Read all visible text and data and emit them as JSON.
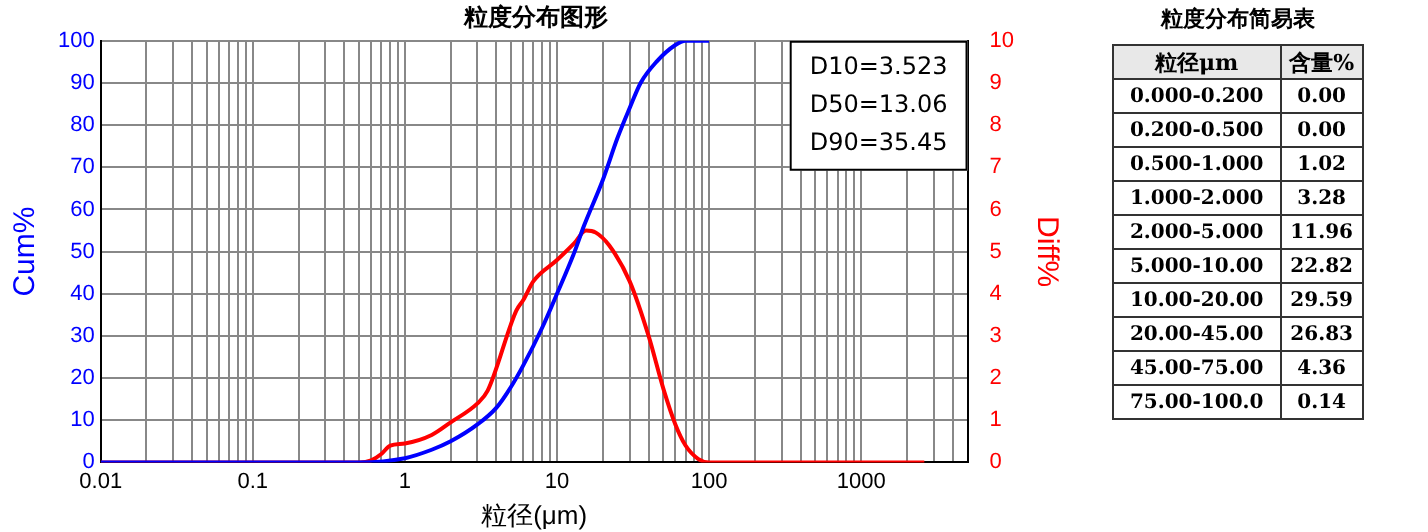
{
  "chart_data": [
    {
      "type": "line",
      "title": "粒度分布图形",
      "xlabel": "粒径(μm)",
      "ylabel": "Cum%",
      "y2label": "Diff%",
      "log": "x",
      "grid": true,
      "xlim": [
        0.01,
        5000
      ],
      "xticks": [
        0.01,
        {
          "value": 0.02,
          "label": null
        },
        {
          "value": 0.03,
          "label": null
        },
        {
          "value": 0.04,
          "label": null
        },
        {
          "value": 0.05,
          "label": null
        },
        {
          "value": 0.06,
          "label": null
        },
        {
          "value": 0.07,
          "label": null
        },
        {
          "value": 0.08,
          "label": null
        },
        {
          "value": 0.09,
          "label": null
        },
        0.1,
        {
          "value": 0.2,
          "label": null
        },
        {
          "value": 0.3,
          "label": null
        },
        {
          "value": 0.4,
          "label": null
        },
        {
          "value": 0.5,
          "label": null
        },
        {
          "value": 0.6,
          "label": null
        },
        {
          "value": 0.7,
          "label": null
        },
        {
          "value": 0.8,
          "label": null
        },
        {
          "value": 0.9,
          "label": null
        },
        1,
        {
          "value": 2,
          "label": null
        },
        {
          "value": 3,
          "label": null
        },
        {
          "value": 4,
          "label": null
        },
        {
          "value": 5,
          "label": null
        },
        {
          "value": 6,
          "label": null
        },
        {
          "value": 7,
          "label": null
        },
        {
          "value": 8,
          "label": null
        },
        {
          "value": 9,
          "label": null
        },
        10,
        {
          "value": 20,
          "label": null
        },
        {
          "value": 30,
          "label": null
        },
        {
          "value": 40,
          "label": null
        },
        {
          "value": 50,
          "label": null
        },
        {
          "value": 60,
          "label": null
        },
        {
          "value": 70,
          "label": null
        },
        {
          "value": 80,
          "label": null
        },
        {
          "value": 90,
          "label": null
        },
        100,
        {
          "value": 200,
          "label": null
        },
        {
          "value": 300,
          "label": null
        },
        {
          "value": 400,
          "label": null
        },
        {
          "value": 500,
          "label": null
        },
        {
          "value": 600,
          "label": null
        },
        {
          "value": 700,
          "label": null
        },
        {
          "value": 800,
          "label": null
        },
        {
          "value": 900,
          "label": null
        },
        1000,
        {
          "value": 2000,
          "label": null
        },
        {
          "value": 3000,
          "label": null
        },
        {
          "value": 4000,
          "label": null
        },
        {
          "value": 5000,
          "label": null
        }
      ],
      "ylim": [
        0,
        100
      ],
      "yticks": [
        0,
        10,
        20,
        30,
        40,
        50,
        60,
        70,
        80,
        90,
        100
      ],
      "y2lim": [
        0,
        10
      ],
      "y2ticks": [
        0,
        1,
        2,
        3,
        4,
        5,
        6,
        7,
        8,
        9,
        10
      ],
      "annotations": [
        "D10=3.523",
        "D50=13.06",
        "D90=35.45"
      ],
      "series": [
        {
          "color": "#0000ff",
          "x": [
            0.01,
            0.5,
            1,
            1.5,
            2,
            3,
            4,
            5,
            6,
            8,
            10,
            13.06,
            15,
            20,
            25,
            30,
            35.45,
            45,
            60,
            70,
            100
          ],
          "values": [
            0,
            0,
            1,
            3,
            5,
            9,
            13,
            18,
            23,
            32,
            40,
            50,
            56,
            67,
            77,
            84,
            90,
            95,
            99,
            100,
            100
          ]
        },
        {
          "color": "#ff0000",
          "axis": "y2",
          "x": [
            0.01,
            0.5,
            0.6,
            0.7,
            0.8,
            1,
            1.5,
            2,
            3,
            3.5,
            5.4,
            6,
            7,
            10,
            13,
            15.5,
            18,
            22,
            30,
            40,
            50,
            60,
            70,
            85,
            100,
            1000,
            2600
          ],
          "values": [
            0,
            0,
            0.05,
            0.2,
            0.4,
            0.45,
            0.65,
            0.95,
            1.4,
            1.7,
            3.6,
            3.85,
            4.3,
            4.8,
            5.2,
            5.5,
            5.45,
            5.15,
            4.3,
            3,
            1.75,
            0.9,
            0.4,
            0.08,
            0,
            0,
            0
          ]
        }
      ]
    },
    {
      "type": "other",
      "title": "粒度分布简易表",
      "xlabel": "粒径μm",
      "ylabel": "含量%",
      "value_labels": [
        "0.00",
        "0.00",
        "1.02",
        "3.28",
        "11.96",
        "22.82",
        "29.59",
        "26.83",
        "4.36",
        "0.14"
      ],
      "categories": [
        "0.000-0.200",
        "0.200-0.500",
        "0.500-1.000",
        "1.000-2.000",
        "2.000-5.000",
        "5.000-10.00",
        "10.00-20.00",
        "20.00-45.00",
        "45.00-75.00",
        "75.00-100.0"
      ]
    }
  ]
}
